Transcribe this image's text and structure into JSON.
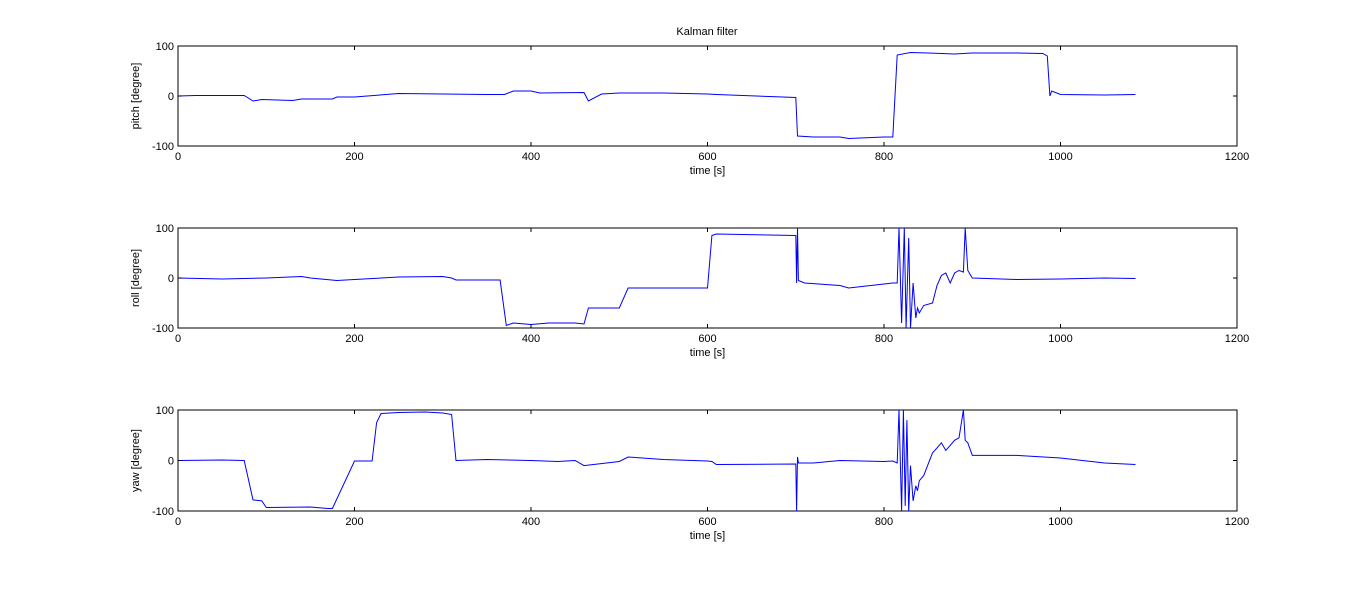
{
  "figure_title": "Kalman filter",
  "chart_data": [
    {
      "type": "line",
      "title": "Kalman filter",
      "xlabel": "time [s]",
      "ylabel": "pitch [degree]",
      "xlim": [
        0,
        1200
      ],
      "ylim": [
        -100,
        100
      ],
      "xticks": [
        0,
        200,
        400,
        600,
        800,
        1000,
        1200
      ],
      "yticks": [
        -100,
        0,
        100
      ],
      "grid": false,
      "color": "#0000ff",
      "x": [
        0,
        20,
        75,
        85,
        95,
        130,
        140,
        175,
        180,
        200,
        250,
        300,
        350,
        370,
        380,
        400,
        410,
        460,
        465,
        480,
        500,
        550,
        600,
        610,
        700,
        702,
        720,
        750,
        760,
        800,
        810,
        815,
        830,
        850,
        880,
        900,
        930,
        950,
        980,
        985,
        988,
        990,
        1000,
        1050,
        1085
      ],
      "y": [
        0,
        1,
        1,
        -10,
        -7,
        -9,
        -6,
        -6,
        -2,
        -2,
        5,
        4,
        3,
        3,
        10,
        10,
        6,
        7,
        -10,
        4,
        6,
        6,
        4,
        3,
        -3,
        -80,
        -82,
        -82,
        -85,
        -82,
        -82,
        82,
        87,
        86,
        84,
        86,
        86,
        86,
        85,
        80,
        0,
        10,
        3,
        2,
        3
      ]
    },
    {
      "type": "line",
      "xlabel": "time [s]",
      "ylabel": "roll [degree]",
      "xlim": [
        0,
        1200
      ],
      "ylim": [
        -100,
        100
      ],
      "xticks": [
        0,
        200,
        400,
        600,
        800,
        1000,
        1200
      ],
      "yticks": [
        -100,
        0,
        100
      ],
      "grid": false,
      "color": "#0000ff",
      "x": [
        0,
        50,
        100,
        140,
        150,
        180,
        200,
        250,
        300,
        310,
        315,
        365,
        372,
        380,
        400,
        420,
        450,
        460,
        465,
        500,
        510,
        600,
        605,
        610,
        700,
        701,
        702,
        703,
        710,
        750,
        760,
        800,
        810,
        815,
        817,
        820,
        823,
        825,
        828,
        830,
        833,
        836,
        838,
        840,
        845,
        855,
        860,
        865,
        870,
        875,
        880,
        885,
        890,
        892,
        895,
        900,
        950,
        1000,
        1050,
        1085
      ],
      "y": [
        0,
        -2,
        0,
        3,
        0,
        -5,
        -3,
        2,
        3,
        0,
        -4,
        -4,
        -95,
        -90,
        -93,
        -90,
        -90,
        -92,
        -60,
        -60,
        -20,
        -20,
        85,
        88,
        85,
        -10,
        100,
        -5,
        -10,
        -15,
        -20,
        -12,
        -10,
        -10,
        100,
        -90,
        100,
        -100,
        80,
        -100,
        -10,
        -80,
        -60,
        -70,
        -55,
        -50,
        -15,
        5,
        10,
        -10,
        10,
        15,
        12,
        100,
        15,
        0,
        -3,
        -2,
        0,
        -1
      ]
    },
    {
      "type": "line",
      "xlabel": "time [s]",
      "ylabel": "yaw [degree]",
      "xlim": [
        0,
        1200
      ],
      "ylim": [
        -100,
        100
      ],
      "xticks": [
        0,
        200,
        400,
        600,
        800,
        1000,
        1200
      ],
      "yticks": [
        -100,
        0,
        100
      ],
      "grid": false,
      "color": "#0000ff",
      "x": [
        0,
        50,
        75,
        85,
        95,
        100,
        150,
        170,
        175,
        200,
        220,
        225,
        230,
        250,
        280,
        300,
        310,
        315,
        350,
        400,
        430,
        450,
        460,
        500,
        510,
        550,
        600,
        605,
        610,
        700,
        701,
        702,
        703,
        720,
        750,
        800,
        810,
        815,
        817,
        820,
        822,
        824,
        826,
        828,
        830,
        833,
        836,
        838,
        840,
        845,
        855,
        860,
        865,
        870,
        875,
        880,
        885,
        890,
        892,
        895,
        900,
        950,
        1000,
        1050,
        1085
      ],
      "y": [
        0,
        1,
        0,
        -78,
        -80,
        -93,
        -92,
        -95,
        -95,
        -1,
        -1,
        75,
        93,
        95,
        96,
        94,
        91,
        0,
        2,
        0,
        -2,
        0,
        -10,
        -2,
        7,
        2,
        -1,
        -2,
        -8,
        -7,
        -100,
        7,
        -5,
        -5,
        0,
        -2,
        -1,
        -5,
        100,
        -100,
        100,
        -90,
        80,
        -100,
        -10,
        -80,
        -50,
        -60,
        -40,
        -30,
        15,
        25,
        35,
        20,
        30,
        40,
        45,
        100,
        40,
        35,
        10,
        10,
        5,
        -5,
        -8
      ]
    }
  ]
}
